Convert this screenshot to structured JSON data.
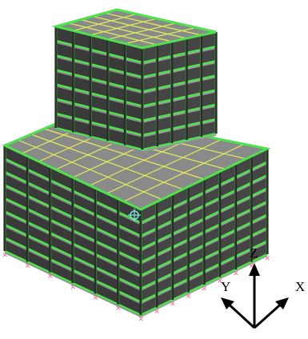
{
  "viewport": {
    "type": "3d-structural-frame-model",
    "colors": {
      "background": "#ffffff",
      "slab": "#8a8a8a",
      "beam": "#4fe24f",
      "beam_dark": "#2c8f2c",
      "grid_line": "#e2ef58",
      "column": "#2b2b2b",
      "support": "#f06a8c",
      "node_marker": "#7fe3d2"
    }
  },
  "structure": {
    "lower_block": {
      "stories": 8,
      "bays_x": 8,
      "bays_y": 6
    },
    "upper_block": {
      "stories": 7,
      "bays_x": 5,
      "bays_y": 5
    }
  },
  "axes": {
    "x_label": "X",
    "y_label": "Y",
    "z_label": "Z"
  }
}
